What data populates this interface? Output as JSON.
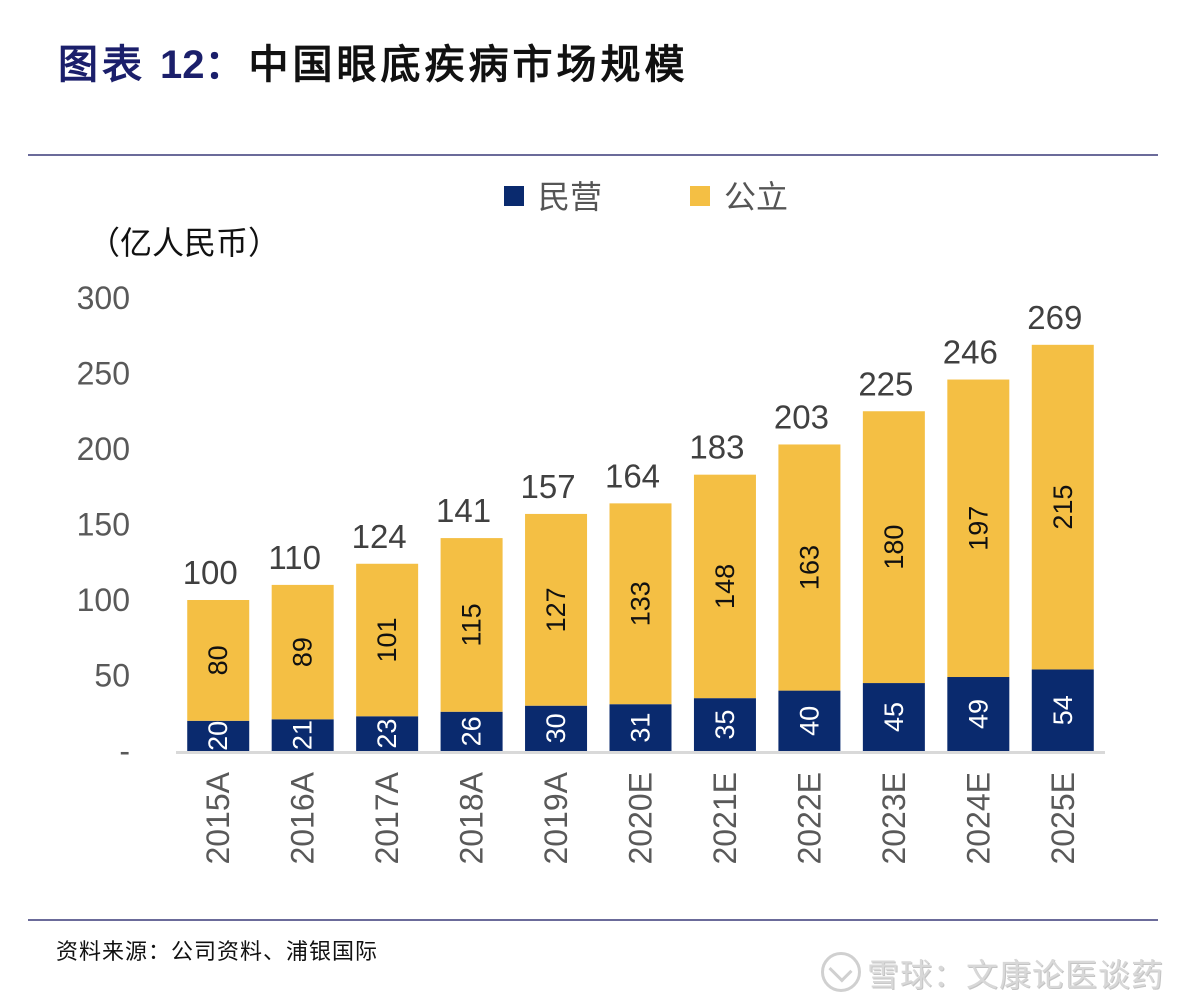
{
  "header": {
    "prefix": "图表",
    "number": "12：",
    "title": "中国眼底疾病市场规模"
  },
  "footer": {
    "source": "资料来源：公司资料、浦银国际",
    "watermark": "雪球：文康论医谈药"
  },
  "colors": {
    "private": "#0a2a6e",
    "public": "#f4bf44",
    "title_accent": "#1b1f6b",
    "axis": "#d9d9d9"
  },
  "chart_data": {
    "type": "bar",
    "stacked": true,
    "title": "中国眼底疾病市场规模",
    "unit_label": "（亿人民币）",
    "xlabel": "",
    "ylabel": "亿人民币",
    "ylim": [
      0,
      300
    ],
    "yticks": [
      0,
      50,
      100,
      150,
      200,
      250,
      300
    ],
    "ytick_labels": [
      "-",
      "50",
      "100",
      "150",
      "200",
      "250",
      "300"
    ],
    "grid": false,
    "legend_position": "top-center",
    "categories": [
      "2015A",
      "2016A",
      "2017A",
      "2018A",
      "2019A",
      "2020E",
      "2021E",
      "2022E",
      "2023E",
      "2024E",
      "2025E"
    ],
    "series": [
      {
        "name": "民营",
        "color": "#0a2a6e",
        "values": [
          20,
          21,
          23,
          26,
          30,
          31,
          35,
          40,
          45,
          49,
          54
        ]
      },
      {
        "name": "公立",
        "color": "#f4bf44",
        "values": [
          80,
          89,
          101,
          115,
          127,
          133,
          148,
          163,
          180,
          197,
          215
        ]
      }
    ],
    "totals": [
      100,
      110,
      124,
      141,
      157,
      164,
      183,
      203,
      225,
      246,
      269
    ]
  }
}
